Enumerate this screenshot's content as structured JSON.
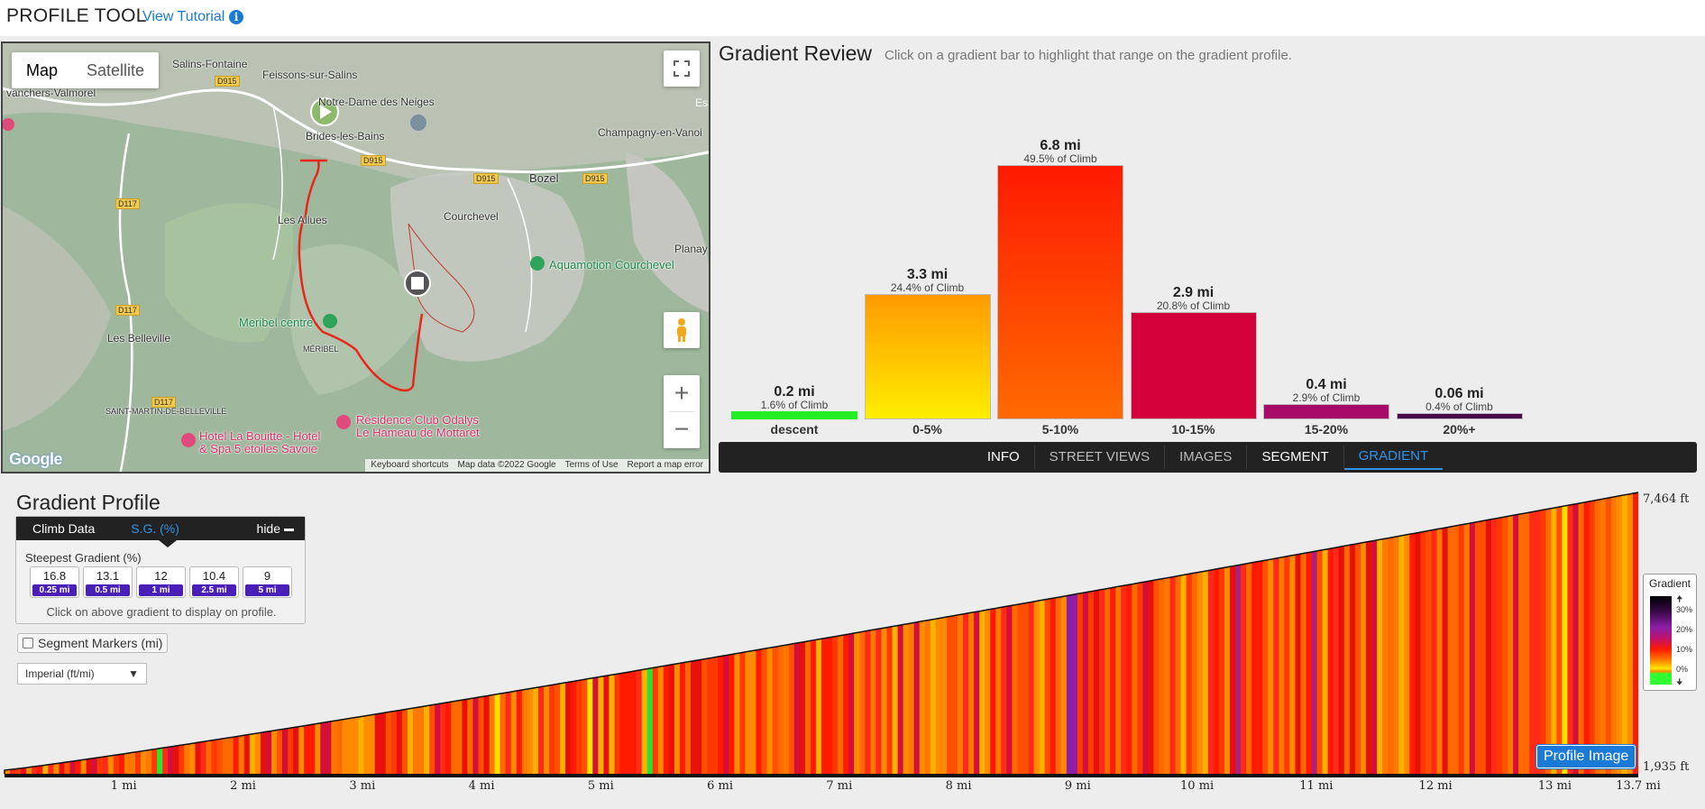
{
  "header": {
    "title": "PROFILE TOOL",
    "tutorial_link": "View Tutorial",
    "info_glyph": "i"
  },
  "map": {
    "map_type_tabs": [
      "Map",
      "Satellite"
    ],
    "active_map_type": "Map",
    "zoom_in": "+",
    "zoom_out": "−",
    "labels": {
      "salins": "Salins-Fontaine",
      "feissons": "Feissons-sur-Salins",
      "vanchers": "vanchers-Valmorel",
      "notre_dame": "Notre-Dame des Neiges",
      "brides": "Brides-les-Bains",
      "champagny": "Champagny-en-Vanoi",
      "bozel": "Bozel",
      "courchevel": "Courchevel",
      "les_allues": "Les Allues",
      "planay": "Planay",
      "aquamotion": "Aquamotion Courchevel",
      "meribel_centre": "Meribel centre",
      "meribel": "MÉRIBEL",
      "les_belleville": "Les Belleville",
      "saint_martin": "SAINT-MARTIN-DE-BELLEVILLE",
      "hotel_bouitte_1": "Hotel La Bouitte - Hotel",
      "hotel_bouitte_2": "& Spa 5 étoiles Savoie",
      "residence_1": "Résidence Club Odalys",
      "residence_2": "Le Hameau de Mottaret",
      "es": "Es"
    },
    "road_badges": [
      "D915",
      "D915",
      "D915",
      "D915",
      "D117",
      "D117",
      "D117"
    ],
    "footer": [
      "Keyboard shortcuts",
      "Map data ©2022 Google",
      "Terms of Use",
      "Report a map error"
    ],
    "google_logo": "Google"
  },
  "gradient_review": {
    "title": "Gradient Review",
    "subtitle": "Click on a gradient bar to highlight that range on the gradient profile."
  },
  "chart_data": {
    "type": "bar",
    "categories": [
      "descent",
      "0-5%",
      "5-10%",
      "10-15%",
      "15-20%",
      "20%+"
    ],
    "distance_labels": [
      "0.2 mi",
      "3.3 mi",
      "6.8 mi",
      "2.9 mi",
      "0.4 mi",
      "0.06 mi"
    ],
    "percent_labels": [
      "1.6% of Climb",
      "24.4% of Climb",
      "49.5% of Climb",
      "20.8% of Climb",
      "2.9% of Climb",
      "0.4% of Climb"
    ],
    "values": [
      1.6,
      24.4,
      49.5,
      20.8,
      2.9,
      0.4
    ],
    "colors": [
      [
        "#22ee22",
        "#22ee22"
      ],
      [
        "#ff9a00",
        "#ffee00"
      ],
      [
        "#ff1a00",
        "#ff6a00"
      ],
      [
        "#d4003a",
        "#d4003a"
      ],
      [
        "#a80a6a",
        "#a80a6a"
      ],
      [
        "#4a0a4a",
        "#4a0a4a"
      ]
    ],
    "ylim": [
      0,
      50
    ]
  },
  "tabs": [
    "INFO",
    "STREET VIEWS",
    "IMAGES",
    "SEGMENT",
    "GRADIENT"
  ],
  "active_tab": "GRADIENT",
  "gradient_profile": {
    "title": "Gradient Profile",
    "panel_tabs": {
      "climb_data": "Climb Data",
      "sg": "S.G. (%)",
      "hide": "hide"
    },
    "steepest_label": "Steepest Gradient (%)",
    "steepest": [
      {
        "value": "16.8",
        "dist": "0.25 mi"
      },
      {
        "value": "13.1",
        "dist": "0.5 mi"
      },
      {
        "value": "12",
        "dist": "1 mi"
      },
      {
        "value": "10.4",
        "dist": "2.5 mi"
      },
      {
        "value": "9",
        "dist": "5 mi"
      }
    ],
    "hint": "Click on above gradient to display on profile.",
    "segment_markers": "Segment Markers (mi)",
    "units": "Imperial (ft/mi)",
    "elev_top": "7,464 ft",
    "elev_bottom": "1,935 ft",
    "mile_labels": [
      "1 mi",
      "2 mi",
      "3 mi",
      "4 mi",
      "5 mi",
      "6 mi",
      "7 mi",
      "8 mi",
      "9 mi",
      "10 mi",
      "11 mi",
      "12 mi",
      "13 mi",
      "13.7 mi"
    ],
    "legend_title": "Gradient",
    "legend_ticks": [
      "30%",
      "20%",
      "10%",
      "0%"
    ],
    "profile_image_button": "Profile Image"
  }
}
